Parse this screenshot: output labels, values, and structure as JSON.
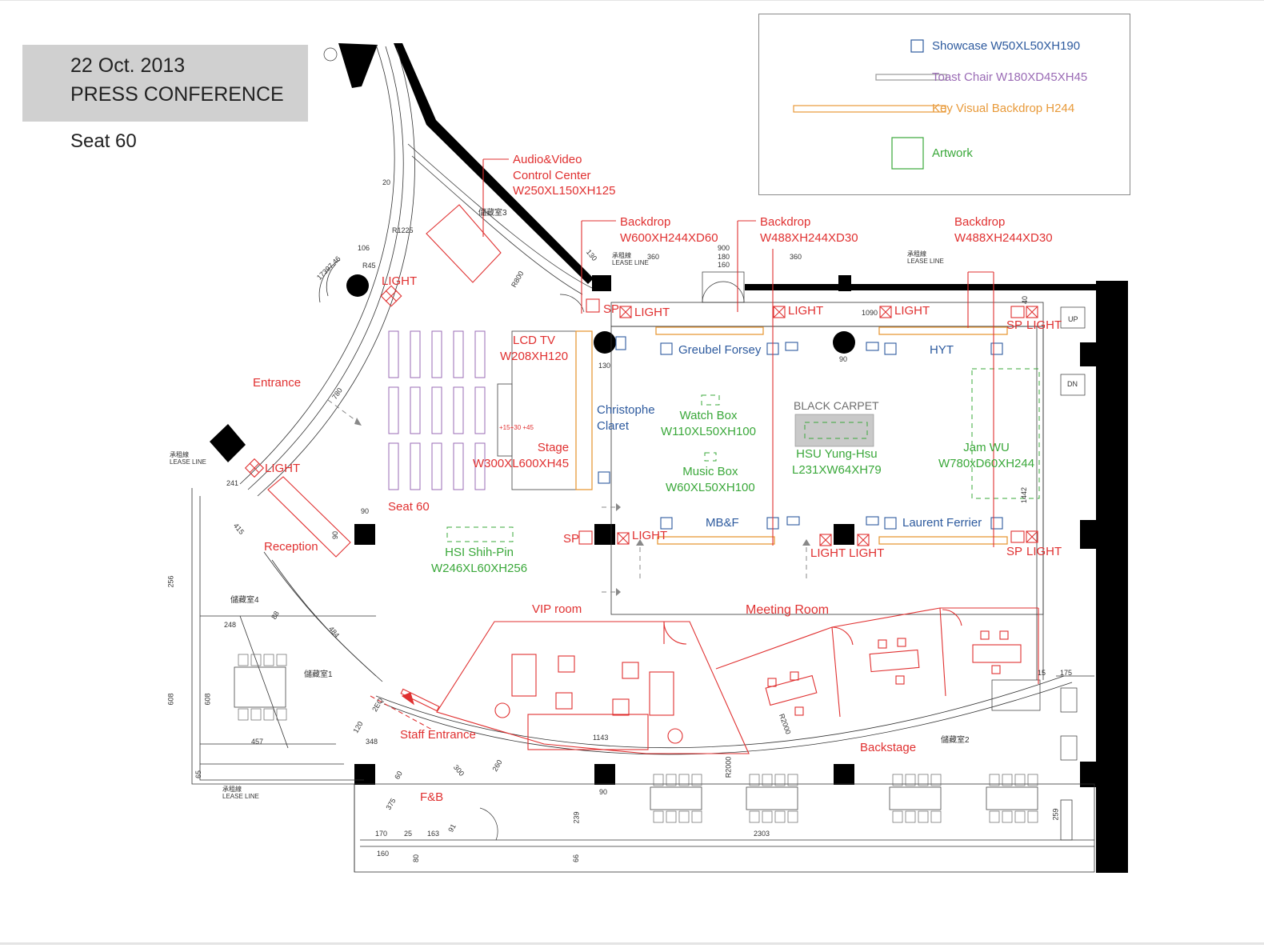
{
  "header": {
    "date": "22  Oct. 2013",
    "event": "PRESS CONFERENCE",
    "seat": "Seat 60"
  },
  "legend": {
    "showcase": "Showcase   W50XL50XH190",
    "toast_chair": "Toast Chair  W180XD45XH45",
    "backdrop": "Key Visual Backdrop H244",
    "artwork": "Artwork"
  },
  "colors": {
    "red": "#e03030",
    "blue": "#2d5a9e",
    "green": "#3aa83a",
    "orange": "#e89a3a",
    "purple": "#9a6bb5",
    "title_box": "#d0d0d0",
    "wall": "#000000"
  },
  "labels": {
    "av_center": "Audio&Video\nControl Center\nW250XL150XH125",
    "backdrop1": "Backdrop\nW600XH244XD60",
    "backdrop2": "Backdrop\nW488XH244XD30",
    "backdrop3": "Backdrop\nW488XH244XD30",
    "light": "LIGHT",
    "sp": "SP",
    "lcd_tv": "LCD TV\nW208XH120",
    "greubel": "Greubel Forsey",
    "hyt": "HYT",
    "christophe": "Christophe\nClaret",
    "watch_box": "Watch Box\nW110XL50XH100",
    "black_carpet": "BLACK CARPET",
    "hsu": "HSU Yung-Hsu\nL231XW64XH79",
    "jam": "Jam WU\nW780xD60XH244",
    "music_box": "Music Box\nW60XL50XH100",
    "stage": "Stage\nW300XL600XH45",
    "entrance": "Entrance",
    "seat60": "Seat 60",
    "reception": "Reception",
    "mbf": "MB&F",
    "laurent": "Laurent Ferrier",
    "hsi": "HSI Shih-Pin\nW246XL60XH256",
    "light_light": "LIGHT LIGHT",
    "vip": "VIP room",
    "meeting": "Meeting Room",
    "staff_entrance": "Staff Entrance",
    "backstage": "Backstage",
    "fb": "F&B",
    "stage_heights": "+15+30 +45"
  },
  "rooms": {
    "store1": "儲藏室1",
    "store2": "儲藏室2",
    "store3": "儲藏室3",
    "store4": "儲藏室4",
    "lease": "承租線\nLEASE LINE",
    "up": "UP",
    "dn": "DN"
  },
  "dimensions": {
    "d20": "20",
    "d1225": "R1225",
    "d106": "106",
    "d45": "R45",
    "d2046": "17397.46",
    "d780": "780",
    "d241": "241",
    "d415": "415",
    "d90a": "90",
    "d90b": "90",
    "d256": "256",
    "d248": "248",
    "d88": "88",
    "d484": "484",
    "d608a": "608",
    "d608b": "608",
    "d457": "457",
    "d348": "348",
    "d120": "120",
    "d2eq": "2EQ",
    "d65": "65",
    "d900": "900",
    "d180": "180",
    "d160": "160",
    "d360a": "360",
    "d360b": "360",
    "d130": "130",
    "d130b": "130",
    "d1090": "1090",
    "d40": "40",
    "d1442": "1442",
    "d175": "175",
    "d15": "15",
    "d1143": "1143",
    "d2000": "R2000",
    "d2000b": "R2000",
    "d300": "300",
    "d260": "260",
    "d375": "375",
    "d170": "170",
    "d25": "25",
    "d163": "163",
    "d91": "91",
    "d160b": "160",
    "d80": "80",
    "d239": "239",
    "d66": "66",
    "d2303": "2303",
    "d259": "259",
    "d90c": "90",
    "d90d": "90",
    "d60": "60",
    "d800": "R800"
  }
}
